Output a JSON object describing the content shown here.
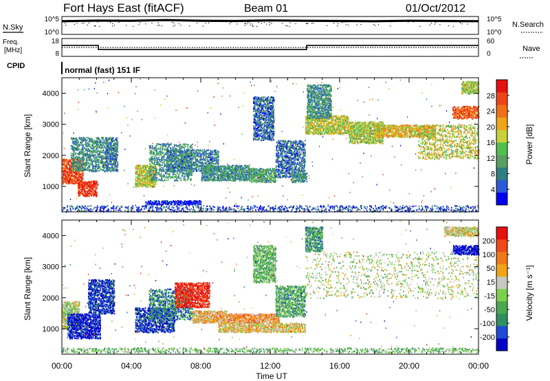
{
  "header": {
    "title": "Fort Hays East (fitACF)",
    "beam": "Beam 01",
    "date": "01/Oct/2012"
  },
  "noise_panel": {
    "left_label": "N.Sky",
    "left_ticks": [
      "10^5",
      "10^0"
    ],
    "right_label": "N.Search",
    "right_ticks": [
      "10^5",
      "10^0"
    ]
  },
  "freq_panel": {
    "left_label_1": "Freq.",
    "left_label_2": "[MHz]",
    "left_ticks": [
      "18",
      "8"
    ],
    "right_label": "Nave",
    "right_ticks": [
      "60",
      "0"
    ]
  },
  "cpid": {
    "label": "CPID",
    "mode": "normal (fast) 151 IF"
  },
  "x_axis": {
    "label": "Time UT",
    "ticks": [
      "00:00",
      "04:00",
      "08:00",
      "12:00",
      "16:00",
      "20:00",
      "00:00"
    ]
  },
  "chart_data": [
    {
      "type": "line",
      "title": "",
      "xlabel": "",
      "ylabel": "N.Sky",
      "series": [
        {
          "name": "N.Sky",
          "x": [
            0,
            2,
            4,
            6,
            8,
            10,
            12,
            14,
            16,
            18,
            20,
            22,
            24
          ],
          "values": [
            0.74,
            0.77,
            0.76,
            0.8,
            0.76,
            0.75,
            0.78,
            0.76,
            0.75,
            0.74,
            0.76,
            0.75,
            0.74
          ]
        }
      ],
      "ylim": [
        0,
        1
      ]
    },
    {
      "type": "line",
      "title": "",
      "xlabel": "",
      "ylabel": "Freq. [MHz]",
      "series": [
        {
          "name": "Freq.",
          "x": [
            0,
            2.1,
            2.1,
            14.1,
            14.1,
            24
          ],
          "values": [
            14.1,
            14.1,
            11.9,
            11.9,
            14.1,
            14.1
          ]
        },
        {
          "name": "Nave",
          "x": [
            0,
            24
          ],
          "values": [
            13.0,
            13.0
          ]
        }
      ],
      "ylim": [
        8,
        18
      ]
    },
    {
      "type": "heatmap",
      "title": "",
      "xlabel": "Time UT",
      "ylabel": "Slant Range [km]",
      "xlim": [
        0,
        24
      ],
      "ylim": [
        180,
        4500
      ],
      "y_ticks": [
        "1000",
        "2000",
        "3000",
        "4000"
      ],
      "colorbar": {
        "label": "Power [dB]",
        "ticks": [
          "4",
          "8",
          "12",
          "16",
          "20",
          "24",
          "28"
        ],
        "colors": [
          "#0000f0",
          "#2a5ad8",
          "#2e7f7f",
          "#5aa060",
          "#4fc04f",
          "#c8d238",
          "#f0a418",
          "#f07018",
          "#f04418",
          "#e81010"
        ]
      },
      "regions": [
        {
          "t0": 0.0,
          "t1": 1.2,
          "r0": 1100,
          "r1": 1900,
          "level": 0.85
        },
        {
          "t0": 0.9,
          "t1": 2.0,
          "r0": 700,
          "r1": 1200,
          "level": 0.9
        },
        {
          "t0": 0.5,
          "t1": 2.5,
          "r0": 1500,
          "r1": 2600,
          "level": 0.3
        },
        {
          "t0": 2.5,
          "t1": 3.2,
          "r0": 1500,
          "r1": 2600,
          "level": 0.25
        },
        {
          "t0": 4.2,
          "t1": 5.4,
          "r0": 1000,
          "r1": 1700,
          "level": 0.55
        },
        {
          "t0": 5.0,
          "t1": 7.5,
          "r0": 1200,
          "r1": 2400,
          "level": 0.3
        },
        {
          "t0": 6.0,
          "t1": 9.0,
          "r0": 1500,
          "r1": 2200,
          "level": 0.25
        },
        {
          "t0": 8.0,
          "t1": 10.8,
          "r0": 1200,
          "r1": 1700,
          "level": 0.3
        },
        {
          "t0": 10.8,
          "t1": 12.3,
          "r0": 1150,
          "r1": 1600,
          "level": 0.35
        },
        {
          "t0": 11.0,
          "t1": 12.2,
          "r0": 2500,
          "r1": 3900,
          "level": 0.2
        },
        {
          "t0": 12.3,
          "t1": 14.0,
          "r0": 1300,
          "r1": 2500,
          "level": 0.2
        },
        {
          "t0": 13.2,
          "t1": 14.1,
          "r0": 1150,
          "r1": 1450,
          "level": 0.3
        },
        {
          "t0": 14.0,
          "t1": 16.5,
          "r0": 2700,
          "r1": 3300,
          "level": 0.55
        },
        {
          "t0": 14.1,
          "t1": 15.5,
          "r0": 3200,
          "r1": 4300,
          "level": 0.3
        },
        {
          "t0": 16.5,
          "t1": 18.5,
          "r0": 2400,
          "r1": 3100,
          "level": 0.5
        },
        {
          "t0": 18.0,
          "t1": 21.5,
          "r0": 2600,
          "r1": 3000,
          "level": 0.6
        },
        {
          "t0": 20.5,
          "t1": 24.0,
          "r0": 1900,
          "r1": 3000,
          "level": 0.55
        },
        {
          "t0": 22.5,
          "t1": 24.0,
          "r0": 3200,
          "r1": 3600,
          "level": 0.8
        },
        {
          "t0": 23.0,
          "t1": 24.0,
          "r0": 4000,
          "r1": 4400,
          "level": 0.5
        },
        {
          "t0": 0.0,
          "t1": 24.0,
          "r0": 200,
          "r1": 400,
          "level": 0.15
        },
        {
          "t0": 4.8,
          "t1": 8.0,
          "r0": 420,
          "r1": 560,
          "level": 0.05
        }
      ]
    },
    {
      "type": "heatmap",
      "title": "",
      "xlabel": "Time UT",
      "ylabel": "Slant Range [km]",
      "xlim": [
        0,
        24
      ],
      "ylim": [
        180,
        4500
      ],
      "y_ticks": [
        "1000",
        "2000",
        "3000",
        "4000"
      ],
      "colorbar": {
        "label": "Velocity [m s⁻¹]",
        "ticks": [
          "200",
          "100",
          "50",
          "15",
          "-15",
          "-50",
          "-100",
          "-200"
        ],
        "colors": [
          "#0000c8",
          "#1e4ad8",
          "#2f8f5f",
          "#49a850",
          "#7cd04a",
          "#c8c8c0",
          "#f0a418",
          "#f07818",
          "#f04818",
          "#e81010"
        ]
      },
      "regions": [
        {
          "t0": 0.0,
          "t1": 1.0,
          "r0": 1000,
          "r1": 1900,
          "level": 0.5
        },
        {
          "t0": 0.3,
          "t1": 2.2,
          "r0": 700,
          "r1": 1500,
          "level": 0.05
        },
        {
          "t0": 1.5,
          "t1": 3.0,
          "r0": 1500,
          "r1": 2600,
          "level": 0.1
        },
        {
          "t0": 4.2,
          "t1": 6.5,
          "r0": 900,
          "r1": 1700,
          "level": 0.1
        },
        {
          "t0": 5.0,
          "t1": 7.5,
          "r0": 1300,
          "r1": 2300,
          "level": 0.25
        },
        {
          "t0": 6.5,
          "t1": 8.5,
          "r0": 1700,
          "r1": 2500,
          "level": 0.95
        },
        {
          "t0": 7.5,
          "t1": 9.5,
          "r0": 1200,
          "r1": 1600,
          "level": 0.65
        },
        {
          "t0": 9.5,
          "t1": 12.5,
          "r0": 1200,
          "r1": 1500,
          "level": 0.7
        },
        {
          "t0": 11.0,
          "t1": 12.3,
          "r0": 2500,
          "r1": 3700,
          "level": 0.38
        },
        {
          "t0": 12.3,
          "t1": 14.0,
          "r0": 1400,
          "r1": 2400,
          "level": 0.35
        },
        {
          "t0": 14.0,
          "t1": 24.0,
          "r0": 2000,
          "r1": 3500,
          "level": 0.5
        },
        {
          "t0": 14.0,
          "t1": 15.0,
          "r0": 3500,
          "r1": 4300,
          "level": 0.3
        },
        {
          "t0": 22.5,
          "t1": 24.0,
          "r0": 3400,
          "r1": 3700,
          "level": 0.02
        },
        {
          "t0": 22.0,
          "t1": 24.0,
          "r0": 4000,
          "r1": 4300,
          "level": 0.55
        },
        {
          "t0": 0.0,
          "t1": 24.0,
          "r0": 250,
          "r1": 400,
          "level": 0.4
        },
        {
          "t0": 9.0,
          "t1": 14.0,
          "r0": 900,
          "r1": 1200,
          "level": 0.6
        }
      ]
    }
  ]
}
